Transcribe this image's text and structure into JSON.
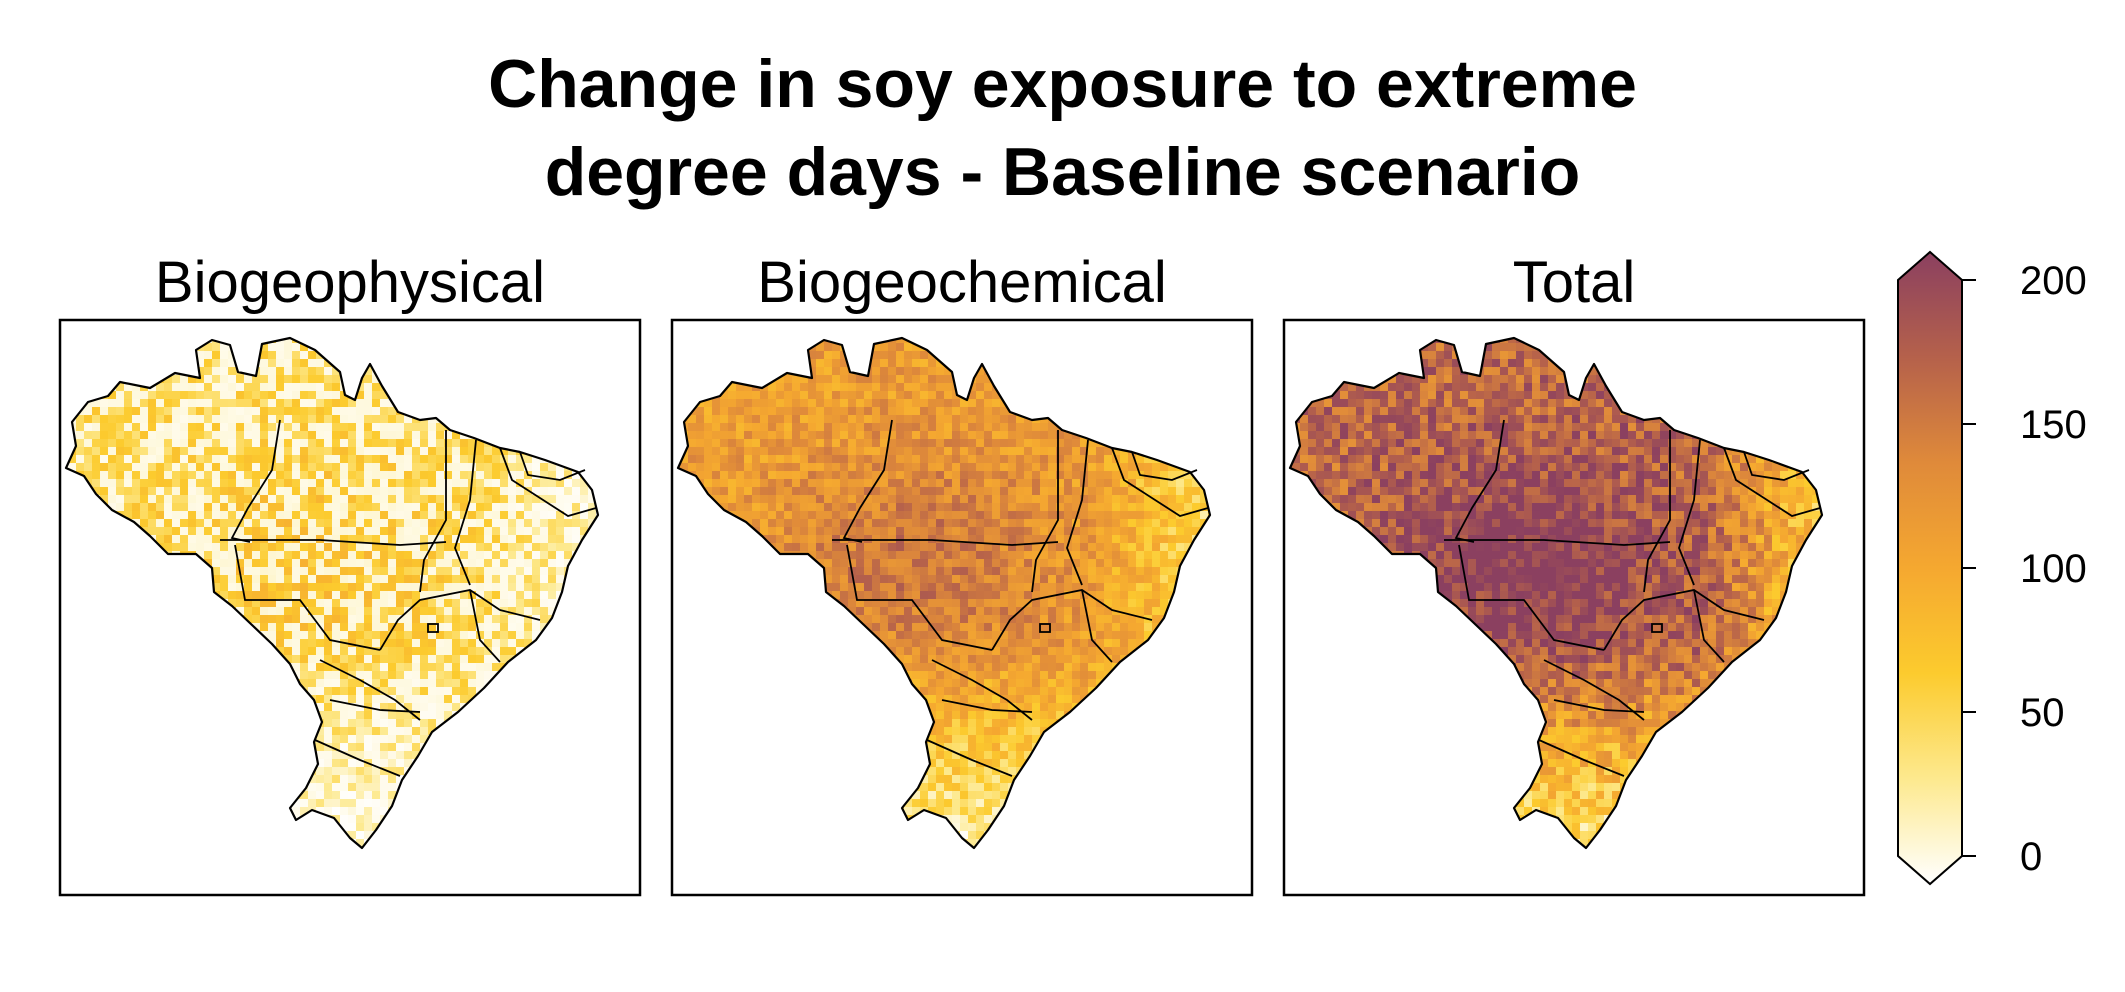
{
  "title": {
    "line1": "Change in soy exposure to extreme",
    "line2": "degree days - Baseline scenario"
  },
  "panels": [
    {
      "title": "Biogeophysical",
      "intensity": 0.28
    },
    {
      "title": "Biogeochemical",
      "intensity": 0.55
    },
    {
      "title": "Total",
      "intensity": 0.78
    }
  ],
  "colorbar": {
    "ticks": [
      "200",
      "150",
      "100",
      "50",
      "0"
    ],
    "min": 0,
    "max": 200,
    "extend": "both",
    "colors": [
      "#ffffff",
      "#fde98e",
      "#fccb2e",
      "#f5a830",
      "#df8a3a",
      "#b5614b",
      "#8b4060"
    ]
  }
}
